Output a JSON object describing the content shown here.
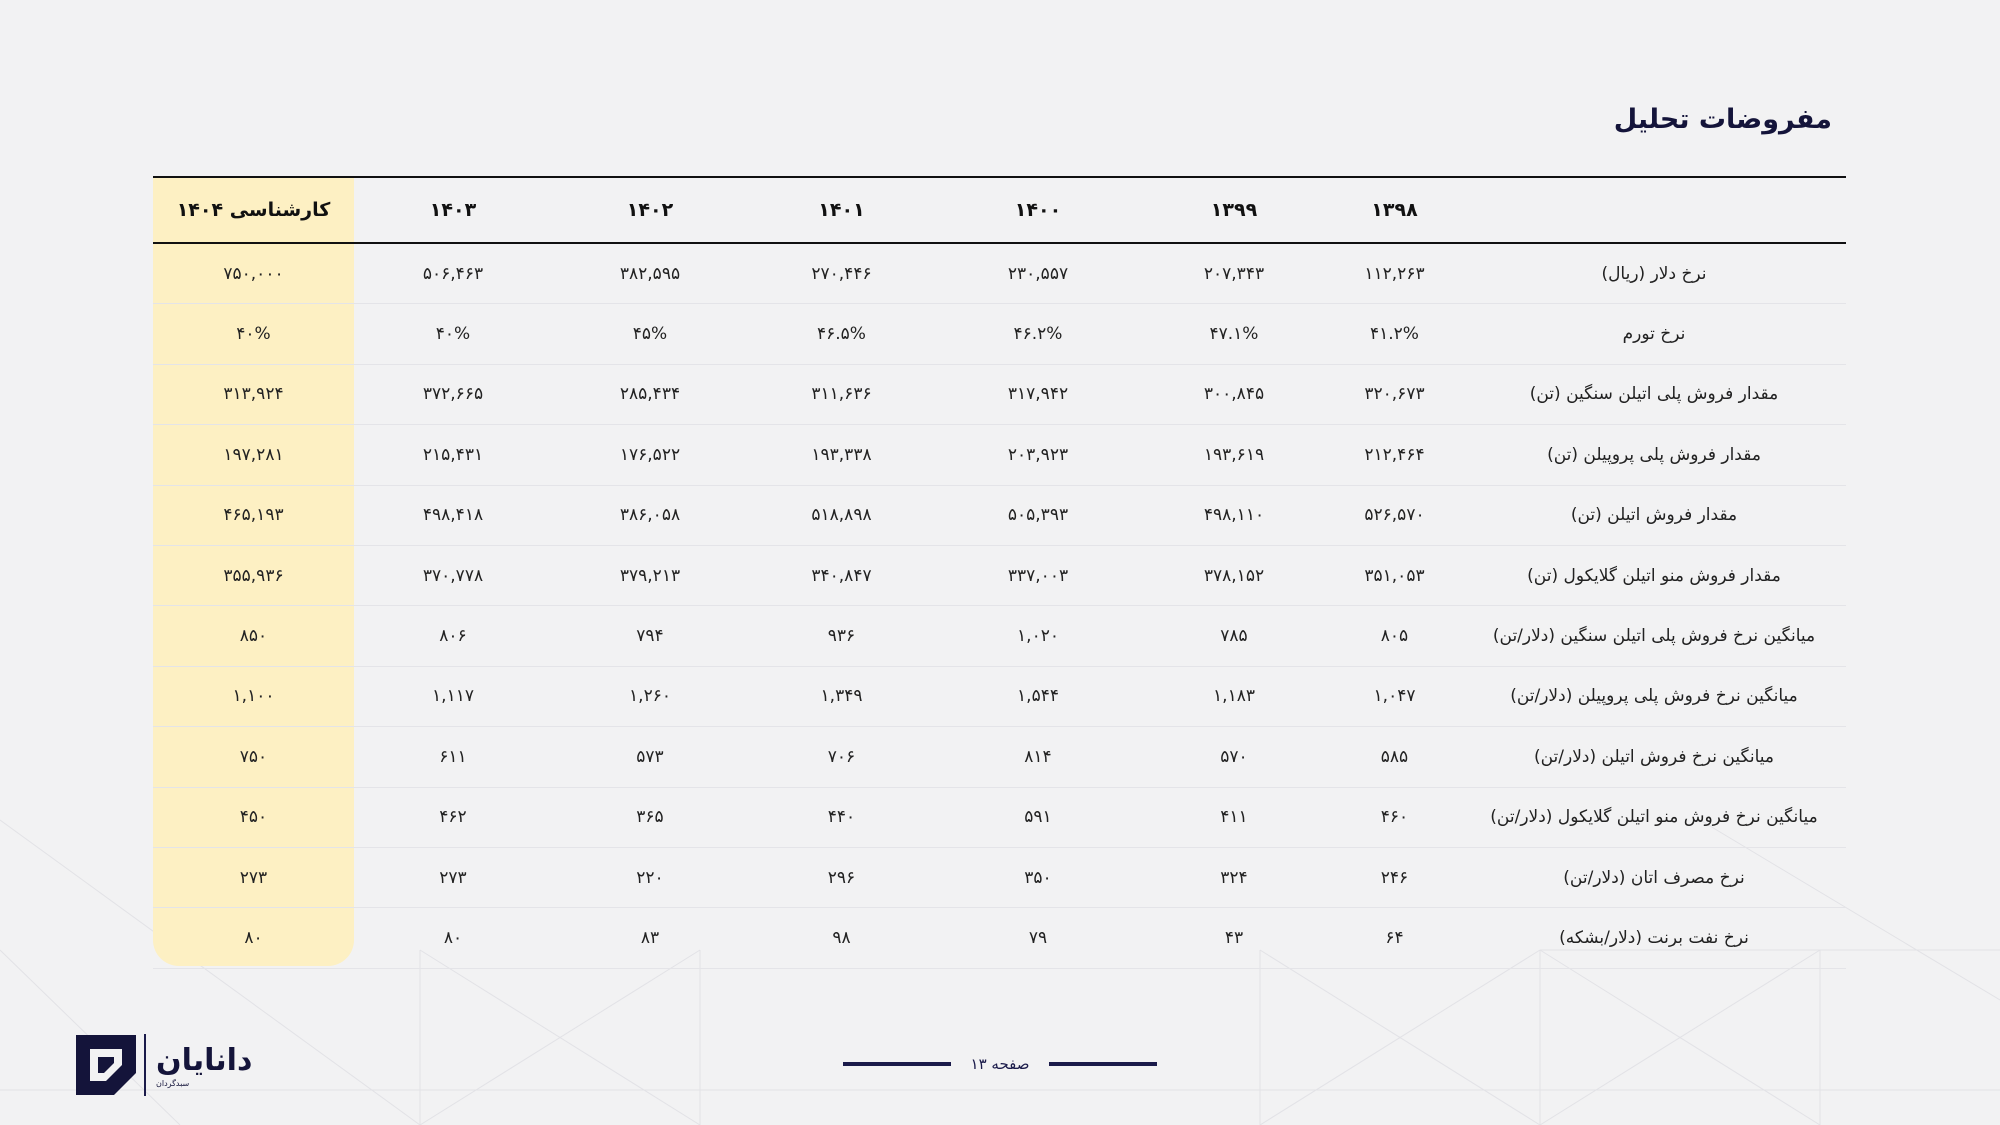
{
  "title": "مفروضات تحلیل",
  "table": {
    "headers": [
      "کارشناسی ۱۴۰۴",
      "۱۴۰۳",
      "۱۴۰۲",
      "۱۴۰۱",
      "۱۴۰۰",
      "۱۳۹۹",
      "۱۳۹۸",
      ""
    ],
    "rows": [
      {
        "label": "نرخ دلار (ریال)",
        "values": [
          "۷۵۰,۰۰۰",
          "۵۰۶,۴۶۳",
          "۳۸۲,۵۹۵",
          "۲۷۰,۴۴۶",
          "۲۳۰,۵۵۷",
          "۲۰۷,۳۴۳",
          "۱۱۲,۲۶۳"
        ]
      },
      {
        "label": "نرخ تورم",
        "values": [
          "۴۰%",
          "۴۰%",
          "۴۵%",
          "۴۶.۵%",
          "۴۶.۲%",
          "۴۷.۱%",
          "۴۱.۲%"
        ]
      },
      {
        "label": "مقدار فروش پلی اتیلن سنگین (تن)",
        "values": [
          "۳۱۳,۹۲۴",
          "۳۷۲,۶۶۵",
          "۲۸۵,۴۳۴",
          "۳۱۱,۶۳۶",
          "۳۱۷,۹۴۲",
          "۳۰۰,۸۴۵",
          "۳۲۰,۶۷۳"
        ]
      },
      {
        "label": "مقدار فروش پلی پروپیلن (تن)",
        "values": [
          "۱۹۷,۲۸۱",
          "۲۱۵,۴۳۱",
          "۱۷۶,۵۲۲",
          "۱۹۳,۳۳۸",
          "۲۰۳,۹۲۳",
          "۱۹۳,۶۱۹",
          "۲۱۲,۴۶۴"
        ]
      },
      {
        "label": "مقدار فروش اتیلن (تن)",
        "values": [
          "۴۶۵,۱۹۳",
          "۴۹۸,۴۱۸",
          "۳۸۶,۰۵۸",
          "۵۱۸,۸۹۸",
          "۵۰۵,۳۹۳",
          "۴۹۸,۱۱۰",
          "۵۲۶,۵۷۰"
        ]
      },
      {
        "label": "مقدار فروش منو اتیلن گلایکول (تن)",
        "values": [
          "۳۵۵,۹۳۶",
          "۳۷۰,۷۷۸",
          "۳۷۹,۲۱۳",
          "۳۴۰,۸۴۷",
          "۳۳۷,۰۰۳",
          "۳۷۸,۱۵۲",
          "۳۵۱,۰۵۳"
        ]
      },
      {
        "label": "میانگین نرخ فروش پلی اتیلن سنگین (دلار/تن)",
        "values": [
          "۸۵۰",
          "۸۰۶",
          "۷۹۴",
          "۹۳۶",
          "۱,۰۲۰",
          "۷۸۵",
          "۸۰۵"
        ]
      },
      {
        "label": "میانگین نرخ فروش پلی پروپیلن (دلار/تن)",
        "values": [
          "۱,۱۰۰",
          "۱,۱۱۷",
          "۱,۲۶۰",
          "۱,۳۴۹",
          "۱,۵۴۴",
          "۱,۱۸۳",
          "۱,۰۴۷"
        ]
      },
      {
        "label": "میانگین نرخ فروش اتیلن (دلار/تن)",
        "values": [
          "۷۵۰",
          "۶۱۱",
          "۵۷۳",
          "۷۰۶",
          "۸۱۴",
          "۵۷۰",
          "۵۸۵"
        ]
      },
      {
        "label": "میانگین نرخ فروش منو اتیلن گلایکول (دلار/تن)",
        "values": [
          "۴۵۰",
          "۴۶۲",
          "۳۶۵",
          "۴۴۰",
          "۵۹۱",
          "۴۱۱",
          "۴۶۰"
        ]
      },
      {
        "label": "نرخ مصرف اتان (دلار/تن)",
        "values": [
          "۲۷۳",
          "۲۷۳",
          "۲۲۰",
          "۲۹۶",
          "۳۵۰",
          "۳۲۴",
          "۲۴۶"
        ]
      },
      {
        "label": "نرخ نفت برنت (دلار/بشکه)",
        "values": [
          "۸۰",
          "۸۰",
          "۸۳",
          "۹۸",
          "۷۹",
          "۴۳",
          "۶۴"
        ]
      }
    ]
  },
  "footer": {
    "page": "صفحه ۱۳"
  },
  "logo": {
    "name": "دانایان",
    "sub": "سبدگردان"
  },
  "colors": {
    "accent": "#14143a",
    "highlight": "#fdf0c3",
    "background": "#f2f2f3"
  }
}
